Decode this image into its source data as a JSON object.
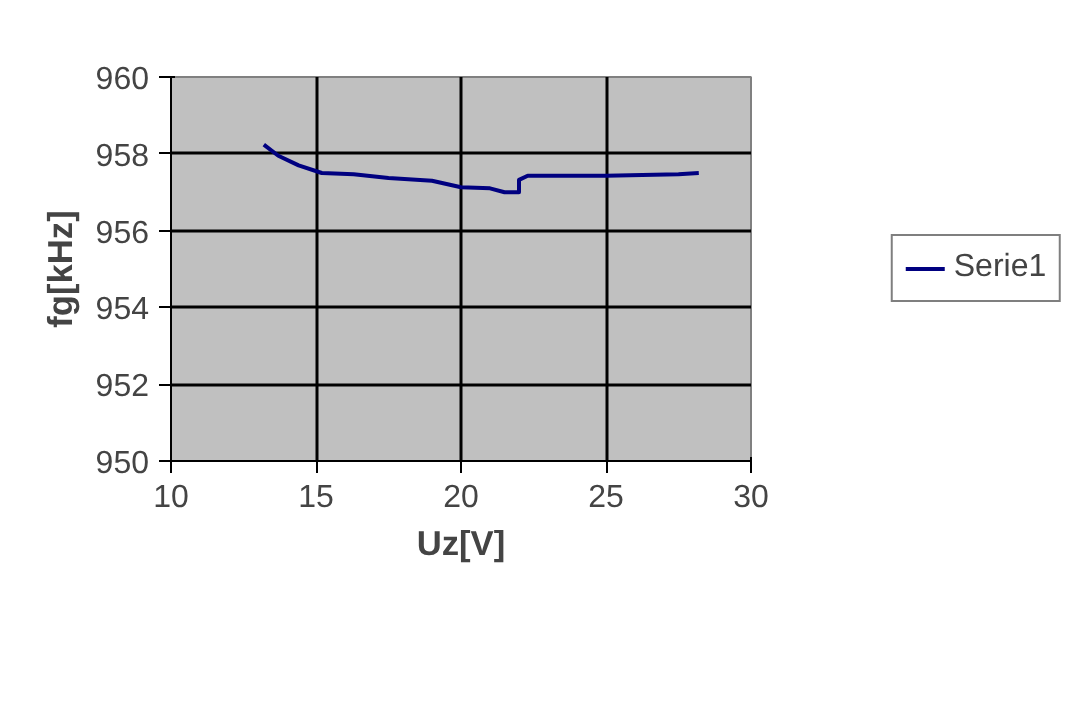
{
  "chart_data": {
    "type": "line",
    "xlabel": "Uz[V]",
    "ylabel": "fg[kHz]",
    "xlim": [
      10,
      30
    ],
    "ylim": [
      950,
      960
    ],
    "xticks": [
      10,
      15,
      20,
      25,
      30
    ],
    "yticks": [
      950,
      952,
      954,
      956,
      958,
      960
    ],
    "grid": true,
    "legend": "right",
    "marker": "none",
    "line_style": "solid",
    "series": [
      {
        "name": "Serie1",
        "color": "#000080",
        "x": [
          13.2,
          13.7,
          14.4,
          15.2,
          16.3,
          17.5,
          19.0,
          20.0,
          21.0,
          21.5,
          22.0,
          22.0,
          22.3,
          25.0,
          27.5,
          28.2
        ],
        "values": [
          958.24,
          957.95,
          957.7,
          957.5,
          957.47,
          957.37,
          957.3,
          957.13,
          957.1,
          957.0,
          957.0,
          957.32,
          957.43,
          957.43,
          957.47,
          957.5
        ]
      }
    ]
  }
}
